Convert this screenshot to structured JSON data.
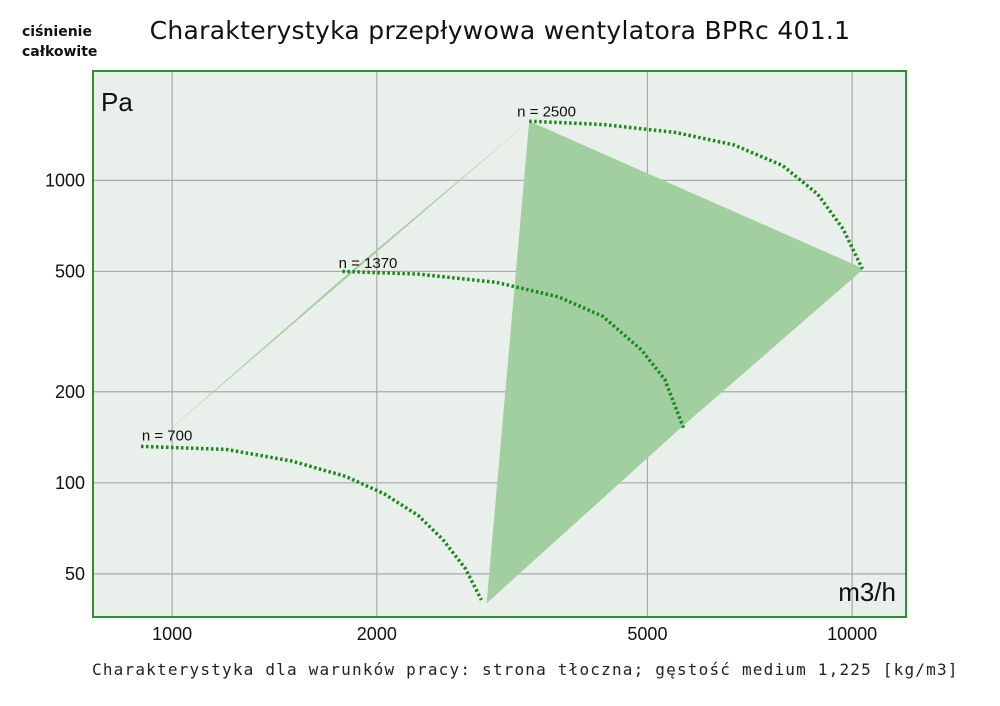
{
  "ylabel_top": [
    "ciśnienie",
    "całkowite"
  ],
  "title": "Charakterystyka przepływowa wentylatora BPRc 401.1",
  "footer": "Charakterystyka dla warunków pracy: strona tłoczna; gęstość medium 1,225 [kg/m3]",
  "chart_data": {
    "type": "line",
    "title": "Charakterystyka przepływowa wentylatora BPRc 401.1",
    "xlabel": "m3/h",
    "ylabel": "Pa",
    "x_scale": "log",
    "y_scale": "log",
    "xlim": [
      765,
      12000
    ],
    "ylim": [
      36,
      2300
    ],
    "x_ticks": [
      1000,
      2000,
      5000,
      10000
    ],
    "x_tick_labels": [
      "1000",
      "2000",
      "5000",
      "10000"
    ],
    "y_ticks": [
      50,
      100,
      200,
      500,
      1000
    ],
    "y_tick_labels": [
      "50",
      "100",
      "200",
      "500",
      "1000"
    ],
    "grid": true,
    "colors": {
      "plot_bg": "#e9efea",
      "border": "#2f8f2f",
      "grid": "#a9aaa9",
      "region_fill": "#a1cf9f",
      "curve": "#1a8a1a"
    },
    "region": {
      "name": "working area",
      "points": [
        [
          940,
          135
        ],
        [
          1830,
          500
        ],
        [
          3350,
          1570
        ],
        [
          10400,
          510
        ],
        [
          5600,
          152
        ],
        [
          2900,
          40
        ],
        [
          3350,
          1570
        ]
      ]
    },
    "series": [
      {
        "name": "n = 700",
        "label_at": [
          940,
          136
        ],
        "points": [
          [
            900,
            132
          ],
          [
            1200,
            129
          ],
          [
            1500,
            118
          ],
          [
            1800,
            105
          ],
          [
            2050,
            92
          ],
          [
            2300,
            78
          ],
          [
            2500,
            65
          ],
          [
            2700,
            52
          ],
          [
            2850,
            41
          ]
        ]
      },
      {
        "name": "n = 1370",
        "label_at": [
          1830,
          505
        ],
        "points": [
          [
            1780,
            500
          ],
          [
            2300,
            490
          ],
          [
            3000,
            460
          ],
          [
            3700,
            412
          ],
          [
            4300,
            355
          ],
          [
            4900,
            275
          ],
          [
            5300,
            220
          ],
          [
            5650,
            152
          ]
        ]
      },
      {
        "name": "n = 2500",
        "label_at": [
          3350,
          1600
        ],
        "points": [
          [
            3350,
            1570
          ],
          [
            4300,
            1530
          ],
          [
            5500,
            1440
          ],
          [
            6700,
            1310
          ],
          [
            7900,
            1120
          ],
          [
            8900,
            900
          ],
          [
            9700,
            690
          ],
          [
            10350,
            510
          ]
        ]
      }
    ]
  }
}
